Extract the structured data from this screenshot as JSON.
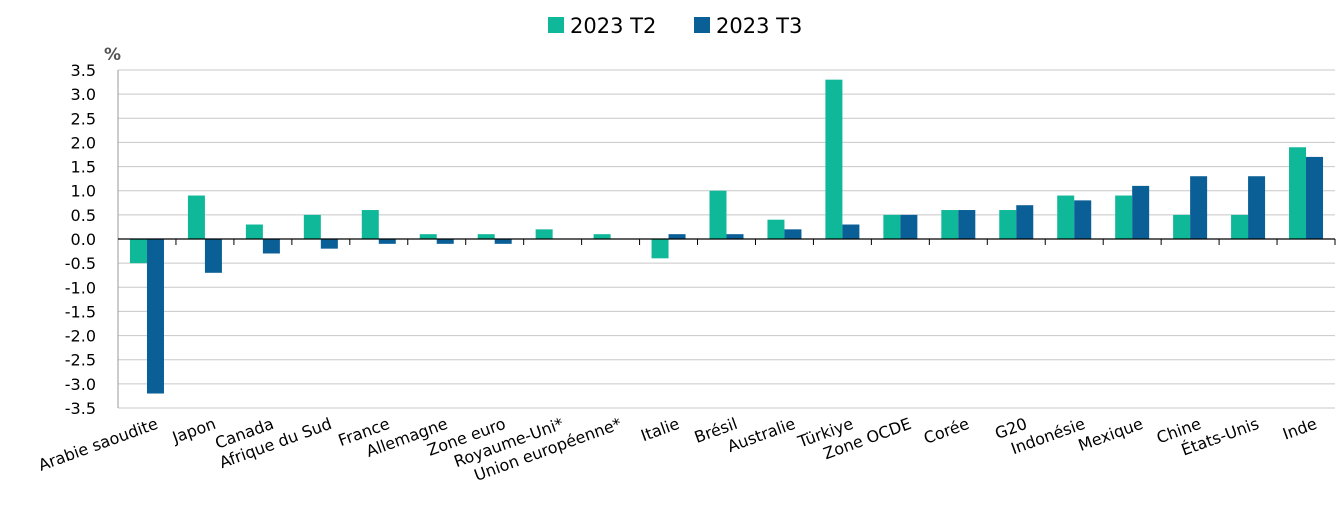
{
  "chart_data": {
    "type": "bar",
    "ylabel": "%",
    "ylim": [
      -3.5,
      3.5
    ],
    "ytick_step": 0.5,
    "grid": true,
    "legend_position": "top-center",
    "categories": [
      "Arabie saoudite",
      "Japon",
      "Canada",
      "Afrique du Sud",
      "France",
      "Allemagne",
      "Zone euro",
      "Royaume-Uni*",
      "Union européenne*",
      "Italie",
      "Brésil",
      "Australie",
      "Türkiye",
      "Zone OCDE",
      "Corée",
      "G20",
      "Indonésie",
      "Mexique",
      "Chine",
      "États-Unis",
      "Inde"
    ],
    "series": [
      {
        "name": "2023 T2",
        "color": "#10b89a",
        "values": [
          -0.5,
          0.9,
          0.3,
          0.5,
          0.6,
          0.1,
          0.1,
          0.2,
          0.1,
          -0.4,
          1.0,
          0.4,
          3.3,
          0.5,
          0.6,
          0.6,
          0.9,
          0.9,
          0.5,
          0.5,
          1.9
        ]
      },
      {
        "name": "2023 T3",
        "color": "#0a5f96",
        "values": [
          -3.2,
          -0.7,
          -0.3,
          -0.2,
          -0.1,
          -0.1,
          -0.1,
          null,
          null,
          0.1,
          0.1,
          0.2,
          0.3,
          0.5,
          0.6,
          0.7,
          0.8,
          1.1,
          1.3,
          1.3,
          1.7
        ]
      }
    ]
  }
}
